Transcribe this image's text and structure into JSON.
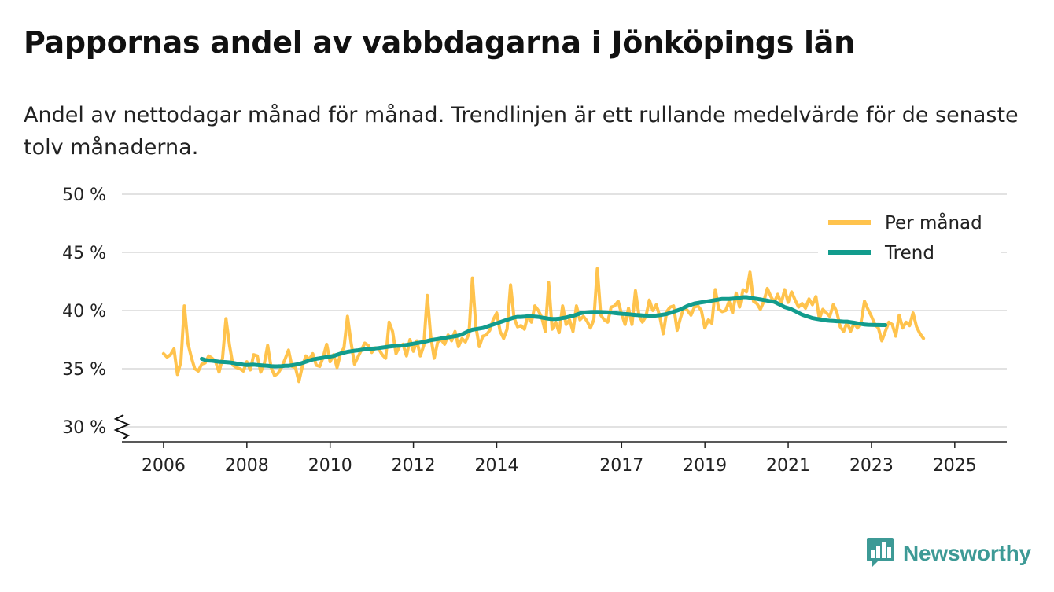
{
  "header": {
    "title": "Pappornas andel av vabbdagarna i Jönköpings län",
    "subtitle": "Andel av nettodagar månad för månad. Trendlinjen är ett rullande medelvärde för de senaste tolv månaderna."
  },
  "brand": {
    "name": "Newsworthy",
    "icon": "newsworthy-logo-icon",
    "color": "#3d9a96"
  },
  "chart_data": {
    "type": "line",
    "title": "Pappornas andel av vabbdagarna i Jönköpings län",
    "xlabel": "",
    "ylabel": "",
    "ylim": [
      30,
      50
    ],
    "yticks": [
      30,
      35,
      40,
      45,
      50
    ],
    "ytick_labels": [
      "30 %",
      "35 %",
      "40 %",
      "45 %",
      "50 %"
    ],
    "xticks": [
      2006,
      2008,
      2010,
      2012,
      2014,
      2017,
      2019,
      2021,
      2023,
      2025
    ],
    "xtick_labels": [
      "2006",
      "2008",
      "2010",
      "2012",
      "2014",
      "2017",
      "2019",
      "2021",
      "2023",
      "2025"
    ],
    "xlim": [
      2005.0,
      2026.25
    ],
    "axis_break": true,
    "grid": true,
    "legend": {
      "position": "top-right",
      "entries": [
        "Per månad",
        "Trend"
      ]
    },
    "series": [
      {
        "name": "Per månad",
        "color": "#ffc34d",
        "start": 2006.0,
        "step": 0.08333,
        "values": [
          36.3,
          36.0,
          36.2,
          36.7,
          34.5,
          35.6,
          40.4,
          37.2,
          36.0,
          35.0,
          34.8,
          35.4,
          35.5,
          36.1,
          35.9,
          35.6,
          34.7,
          35.9,
          39.3,
          37.0,
          35.3,
          35.1,
          35.0,
          34.8,
          35.6,
          34.9,
          36.2,
          36.1,
          34.7,
          35.4,
          37.0,
          35.1,
          34.4,
          34.6,
          35.1,
          35.8,
          36.6,
          35.2,
          35.1,
          33.9,
          35.2,
          36.1,
          35.8,
          36.3,
          35.3,
          35.2,
          36.0,
          37.1,
          35.6,
          36.2,
          35.1,
          36.3,
          36.8,
          39.5,
          37.3,
          35.4,
          36.0,
          36.6,
          37.2,
          37.0,
          36.4,
          36.8,
          36.7,
          36.2,
          35.9,
          39.0,
          38.2,
          36.3,
          36.9,
          37.1,
          36.1,
          37.5,
          36.5,
          37.4,
          36.1,
          37.0,
          41.3,
          37.8,
          35.9,
          37.3,
          37.5,
          37.1,
          37.9,
          37.4,
          38.2,
          36.9,
          37.6,
          37.3,
          38.0,
          42.8,
          38.6,
          36.9,
          37.8,
          37.9,
          38.3,
          39.2,
          39.8,
          38.2,
          37.6,
          38.4,
          42.2,
          39.4,
          38.6,
          38.7,
          38.4,
          39.6,
          39.0,
          40.4,
          40.0,
          39.4,
          38.2,
          42.4,
          38.4,
          39.0,
          38.1,
          40.4,
          38.8,
          39.2,
          38.2,
          40.4,
          39.2,
          39.5,
          39.1,
          38.5,
          39.2,
          43.6,
          39.6,
          39.2,
          39.0,
          40.3,
          40.4,
          40.8,
          39.7,
          38.8,
          40.2,
          38.8,
          41.7,
          39.6,
          39.0,
          39.5,
          40.9,
          40.0,
          40.5,
          39.5,
          38.0,
          39.9,
          40.3,
          40.4,
          38.3,
          39.4,
          40.3,
          40.0,
          39.6,
          40.3,
          40.4,
          40.0,
          38.5,
          39.2,
          38.9,
          41.8,
          40.1,
          39.9,
          40.0,
          40.8,
          39.8,
          41.5,
          40.3,
          41.8,
          41.6,
          43.3,
          40.8,
          40.6,
          40.1,
          40.8,
          41.9,
          41.2,
          40.7,
          41.4,
          40.6,
          41.8,
          40.7,
          41.6,
          40.9,
          40.3,
          40.6,
          40.2,
          41.0,
          40.5,
          41.2,
          39.3,
          40.1,
          39.8,
          39.5,
          40.5,
          39.9,
          38.6,
          38.2,
          39.0,
          38.2,
          38.9,
          38.5,
          39.0,
          40.8,
          40.1,
          39.5,
          38.8,
          38.5,
          37.4,
          38.2,
          39.0,
          38.8,
          37.8,
          39.6,
          38.5,
          39.0,
          38.7,
          39.8,
          38.6,
          38.0,
          37.6
        ]
      },
      {
        "name": "Trend",
        "color": "#129c8d",
        "start": 2006.9167,
        "step": 0.08333,
        "values": [
          35.85,
          35.75,
          35.7,
          35.68,
          35.64,
          35.6,
          35.58,
          35.57,
          35.54,
          35.5,
          35.44,
          35.4,
          35.35,
          35.32,
          35.34,
          35.35,
          35.32,
          35.3,
          35.27,
          35.25,
          35.22,
          35.2,
          35.21,
          35.22,
          35.25,
          35.26,
          35.3,
          35.35,
          35.4,
          35.5,
          35.6,
          35.7,
          35.8,
          35.85,
          35.9,
          35.95,
          36.0,
          36.05,
          36.1,
          36.2,
          36.3,
          36.38,
          36.45,
          36.5,
          36.55,
          36.58,
          36.62,
          36.66,
          36.7,
          36.72,
          36.74,
          36.78,
          36.82,
          36.86,
          36.9,
          36.93,
          36.96,
          36.98,
          37.0,
          37.05,
          37.1,
          37.15,
          37.2,
          37.25,
          37.3,
          37.38,
          37.45,
          37.5,
          37.55,
          37.6,
          37.65,
          37.7,
          37.75,
          37.8,
          37.85,
          37.95,
          38.1,
          38.25,
          38.35,
          38.4,
          38.45,
          38.5,
          38.6,
          38.7,
          38.8,
          38.9,
          39.0,
          39.1,
          39.2,
          39.3,
          39.4,
          39.45,
          39.45,
          39.47,
          39.5,
          39.5,
          39.48,
          39.45,
          39.4,
          39.35,
          39.3,
          39.28,
          39.27,
          39.3,
          39.35,
          39.4,
          39.48,
          39.55,
          39.65,
          39.75,
          39.82,
          39.85,
          39.87,
          39.88,
          39.88,
          39.87,
          39.86,
          39.84,
          39.82,
          39.78,
          39.75,
          39.72,
          39.7,
          39.68,
          39.65,
          39.62,
          39.6,
          39.58,
          39.57,
          39.56,
          39.55,
          39.57,
          39.6,
          39.65,
          39.7,
          39.8,
          39.9,
          40.0,
          40.1,
          40.25,
          40.4,
          40.5,
          40.6,
          40.65,
          40.7,
          40.75,
          40.8,
          40.85,
          40.9,
          40.95,
          41.0,
          41.0,
          41.0,
          41.02,
          41.05,
          41.1,
          41.15,
          41.15,
          41.1,
          41.05,
          41.0,
          40.95,
          40.9,
          40.85,
          40.8,
          40.75,
          40.6,
          40.45,
          40.3,
          40.2,
          40.1,
          39.95,
          39.8,
          39.65,
          39.55,
          39.45,
          39.35,
          39.3,
          39.25,
          39.2,
          39.15,
          39.12,
          39.1,
          39.08,
          39.07,
          39.05,
          39.05,
          39.0,
          38.95,
          38.9,
          38.85,
          38.8,
          38.78,
          38.77,
          38.76,
          38.76,
          38.75,
          38.75
        ]
      }
    ]
  }
}
